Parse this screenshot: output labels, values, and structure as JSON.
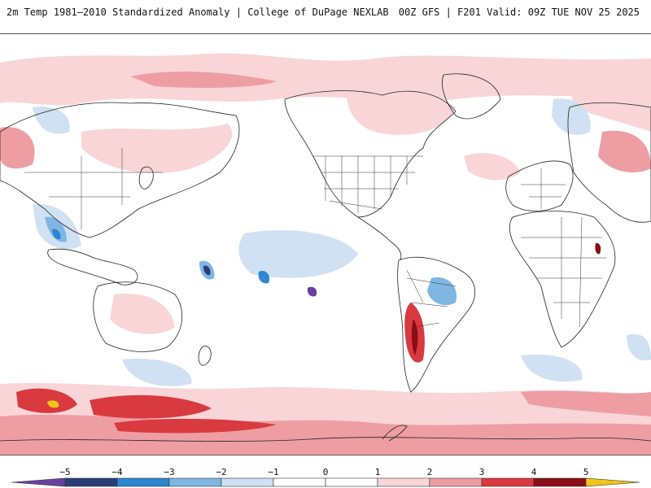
{
  "header": {
    "title_left": "2m Temp 1981–2010 Standardized Anomaly | College of DuPage NEXLAB",
    "title_right": "00Z GFS | F201 Valid: 09Z TUE NOV 25 2025"
  },
  "map": {
    "land_color": "#ffffff",
    "coast_color": "#222222",
    "ocean_color": "#ffffff"
  },
  "colorbar": {
    "ticks": [
      "−5",
      "−4",
      "−3",
      "−2",
      "−1",
      "0",
      "1",
      "2",
      "3",
      "4",
      "5"
    ],
    "bins": [
      {
        "from": -6,
        "to": -5,
        "color": "#6b3fa0"
      },
      {
        "from": -5,
        "to": -4,
        "color": "#2a3d78"
      },
      {
        "from": -4,
        "to": -3,
        "color": "#2c86d1"
      },
      {
        "from": -3,
        "to": -2,
        "color": "#7fb6e2"
      },
      {
        "from": -2,
        "to": -1,
        "color": "#cfe1f2"
      },
      {
        "from": -1,
        "to": 0,
        "color": "#ffffff"
      },
      {
        "from": 0,
        "to": 1,
        "color": "#ffffff"
      },
      {
        "from": 1,
        "to": 2,
        "color": "#f9d5d7"
      },
      {
        "from": 2,
        "to": 3,
        "color": "#ee9ea3"
      },
      {
        "from": 3,
        "to": 4,
        "color": "#d83a3f"
      },
      {
        "from": 4,
        "to": 5,
        "color": "#8b0d16"
      },
      {
        "from": 5,
        "to": 6,
        "color": "#f2c318"
      }
    ]
  }
}
